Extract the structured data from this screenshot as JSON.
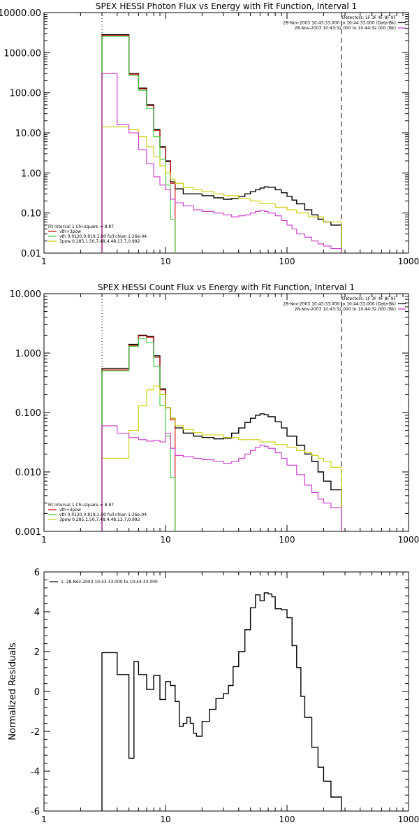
{
  "chart_data": [
    {
      "type": "line",
      "title": "SPEX HESSI Photon Flux vs Energy with Fit Function, Interval 1",
      "xlabel": "",
      "ylabel": "",
      "xscale": "log",
      "yscale": "log",
      "xlim": [
        1,
        1000
      ],
      "ylim": [
        0.01,
        10000
      ],
      "xticklabels": [
        "1",
        "10",
        "100",
        "1000"
      ],
      "yticklabels": [
        "0.01",
        "0.10",
        "1.00",
        "10.00",
        "100.00",
        "1000.00",
        "10000.00"
      ],
      "vlines": [
        {
          "x": 3,
          "style": "dotted"
        },
        {
          "x": 280,
          "style": "dashed"
        }
      ],
      "info_lines": [
        "Detectors: 1F 3F 4F 8F 9F",
        "28-Nov-2003 10:43:33.000 to 10:44:33.000 (Data-Bk)",
        "28-Nov-2003 10:43:32.000 to 10:44:32.000 (Bk)"
      ],
      "info_legend": [
        {
          "label": "28-Nov-2003 10:43:33.000 to 10:44:33.000 (Data-Bk)",
          "color": "#000000"
        },
        {
          "label": "28-Nov-2003 10:43:32.000 to 10:44:32.000 (Bk)",
          "color": "#cc33cc"
        }
      ],
      "fit_legend_header": "Fit Interval 1    Chi-square = 8.87",
      "fit_legend": [
        {
          "label": "vth+3pow",
          "color": "#cc0000"
        },
        {
          "label": "vth 0.0120,0.819,1.00  full chian 1.26e-04",
          "color": "#33cc33"
        },
        {
          "label": "3pow 0.285,1.50,7.48,4.48,13.7,0.992",
          "color": "#cccc00"
        }
      ],
      "series": [
        {
          "color": "#000000",
          "x": [
            3,
            4,
            5,
            6,
            7,
            8,
            9,
            10,
            11,
            12,
            14,
            17,
            20,
            25,
            30,
            35,
            40,
            45,
            50,
            55,
            60,
            65,
            70,
            80,
            90,
            100,
            110,
            120,
            140,
            160,
            180,
            200,
            230,
            280
          ],
          "y": [
            2800,
            2800,
            300,
            130,
            50,
            12,
            4.5,
            2,
            0.6,
            0.4,
            0.3,
            0.3,
            0.27,
            0.24,
            0.22,
            0.23,
            0.26,
            0.3,
            0.34,
            0.38,
            0.42,
            0.45,
            0.44,
            0.38,
            0.32,
            0.26,
            0.21,
            0.17,
            0.12,
            0.09,
            0.07,
            0.06,
            0.05,
            0.04
          ]
        },
        {
          "color": "#cc0000",
          "x": [
            3,
            4,
            5,
            6,
            7,
            8,
            9,
            10,
            11,
            12
          ],
          "y": [
            2700,
            2700,
            290,
            125,
            48,
            11.5,
            4.3,
            1.9,
            0.55,
            0.4
          ]
        },
        {
          "color": "#33cc33",
          "x": [
            3,
            4,
            5,
            6,
            7,
            8,
            9,
            10,
            11,
            12
          ],
          "y": [
            2550,
            2550,
            270,
            115,
            40,
            8,
            2.2,
            0.5,
            0.07,
            0.01
          ]
        },
        {
          "color": "#cccc00",
          "x": [
            3,
            4,
            5,
            6,
            7,
            8,
            9,
            10,
            11,
            12,
            14,
            17,
            20,
            25,
            30,
            40,
            50,
            60,
            80,
            100,
            120,
            150,
            200,
            280
          ],
          "y": [
            14,
            14,
            12,
            8,
            4.5,
            2.5,
            1.5,
            1,
            0.7,
            0.55,
            0.43,
            0.38,
            0.34,
            0.3,
            0.27,
            0.23,
            0.2,
            0.17,
            0.14,
            0.12,
            0.1,
            0.08,
            0.06,
            0.045
          ]
        },
        {
          "color": "#cc33cc",
          "x": [
            3,
            4,
            5,
            6,
            7,
            8,
            9,
            10,
            11,
            12,
            14,
            17,
            20,
            25,
            30,
            35,
            40,
            45,
            50,
            55,
            60,
            65,
            70,
            80,
            90,
            100,
            110,
            120,
            140,
            160,
            180,
            200,
            230,
            280
          ],
          "y": [
            300,
            16,
            10,
            3.8,
            1.7,
            0.8,
            0.5,
            0.38,
            0.22,
            0.18,
            0.15,
            0.12,
            0.11,
            0.1,
            0.09,
            0.08,
            0.085,
            0.09,
            0.1,
            0.11,
            0.115,
            0.11,
            0.1,
            0.085,
            0.065,
            0.05,
            0.04,
            0.03,
            0.025,
            0.02,
            0.017,
            0.015,
            0.013,
            0.012
          ]
        }
      ]
    },
    {
      "type": "line",
      "title": "SPEX HESSI Count Flux vs Energy with Fit Function, Interval 1",
      "xlabel": "",
      "ylabel": "",
      "xscale": "log",
      "yscale": "log",
      "xlim": [
        1,
        1000
      ],
      "ylim": [
        0.001,
        10
      ],
      "xticklabels": [
        "1",
        "10",
        "100",
        "1000"
      ],
      "yticklabels": [
        "0.001",
        "0.010",
        "0.100",
        "1.000",
        "10.000"
      ],
      "vlines": [
        {
          "x": 3,
          "style": "dotted"
        },
        {
          "x": 280,
          "style": "dashed"
        }
      ],
      "info_lines": [
        "Detectors: 1F 3F 4F 8F 9F",
        "28-Nov-2003 10:43:33.000 to 10:44:33.000 (Data-Bk)",
        "28-Nov-2003 10:43:32.000 to 10:44:32.000 (Bk)"
      ],
      "info_legend": [
        {
          "label": "28-Nov-2003 10:43:33.000 to 10:44:33.000 (Data-Bk)",
          "color": "#000000"
        },
        {
          "label": "28-Nov-2003 10:43:32.000 to 10:44:32.000 (Bk)",
          "color": "#cc33cc"
        }
      ],
      "fit_legend_header": "Fit Interval 1    Chi-square = 8.87",
      "fit_legend": [
        {
          "label": "vth+3pow",
          "color": "#cc0000"
        },
        {
          "label": "vth 0.0120,0.819,1.00  full chian 1.26e-04",
          "color": "#33cc33"
        },
        {
          "label": "3pow 0.285,1.50,7.48,4.48,13.7,0.992",
          "color": "#cccc00"
        }
      ],
      "series": [
        {
          "color": "#000000",
          "x": [
            3,
            4,
            5,
            6,
            7,
            8,
            9,
            10,
            11,
            12,
            14,
            17,
            20,
            25,
            30,
            35,
            40,
            45,
            50,
            55,
            60,
            65,
            70,
            80,
            90,
            100,
            120,
            140,
            160,
            180,
            200,
            230,
            280
          ],
          "y": [
            0.55,
            0.55,
            1.4,
            2,
            1.9,
            0.9,
            0.25,
            0.12,
            0.08,
            0.055,
            0.045,
            0.04,
            0.038,
            0.036,
            0.037,
            0.045,
            0.055,
            0.068,
            0.08,
            0.09,
            0.095,
            0.092,
            0.085,
            0.07,
            0.055,
            0.04,
            0.028,
            0.02,
            0.015,
            0.01,
            0.007,
            0.005,
            0.004
          ]
        },
        {
          "color": "#cc0000",
          "x": [
            3,
            4,
            5,
            6,
            7,
            8,
            9,
            10,
            11,
            12
          ],
          "y": [
            0.52,
            0.52,
            1.35,
            1.95,
            1.85,
            0.85,
            0.24,
            0.12,
            0.075,
            0.055
          ]
        },
        {
          "color": "#33cc33",
          "x": [
            3,
            4,
            5,
            6,
            7,
            8,
            9,
            10,
            11,
            12
          ],
          "y": [
            0.5,
            0.5,
            1.3,
            1.75,
            1.5,
            0.6,
            0.13,
            0.04,
            0.008,
            0.001
          ]
        },
        {
          "color": "#cccc00",
          "x": [
            3,
            4,
            5,
            6,
            7,
            8,
            9,
            10,
            11,
            12,
            14,
            17,
            20,
            30,
            40,
            60,
            80,
            100,
            120,
            140,
            160,
            180,
            200,
            230,
            280
          ],
          "y": [
            0.017,
            0.017,
            0.05,
            0.13,
            0.24,
            0.28,
            0.2,
            0.12,
            0.08,
            0.06,
            0.052,
            0.046,
            0.042,
            0.038,
            0.035,
            0.032,
            0.029,
            0.026,
            0.023,
            0.021,
            0.019,
            0.017,
            0.015,
            0.012,
            0.009
          ]
        },
        {
          "color": "#cc33cc",
          "x": [
            3,
            4,
            5,
            6,
            7,
            8,
            9,
            10,
            11,
            12,
            14,
            17,
            20,
            25,
            30,
            35,
            40,
            45,
            50,
            55,
            60,
            65,
            70,
            80,
            90,
            100,
            120,
            140,
            160,
            180,
            200,
            230,
            280
          ],
          "y": [
            0.06,
            0.045,
            0.038,
            0.035,
            0.033,
            0.034,
            0.032,
            0.045,
            0.025,
            0.019,
            0.018,
            0.017,
            0.016,
            0.015,
            0.014,
            0.015,
            0.017,
            0.02,
            0.023,
            0.026,
            0.028,
            0.027,
            0.025,
            0.021,
            0.017,
            0.013,
            0.009,
            0.006,
            0.0045,
            0.0035,
            0.003,
            0.0025,
            0.0022
          ]
        }
      ]
    },
    {
      "type": "line",
      "title": "",
      "xlabel": "",
      "ylabel": "Normalized Residuals",
      "xscale": "log",
      "yscale": "linear",
      "xlim": [
        1,
        1000
      ],
      "ylim": [
        -6,
        6
      ],
      "xticklabels": [
        "1",
        "10",
        "100",
        "1000"
      ],
      "yticklabels": [
        "-6",
        "-4",
        "-2",
        "0",
        "2",
        "4",
        "6"
      ],
      "legend": [
        {
          "label": "1. 28-Nov-2003 10:43:33.000 to 10:44:33.000",
          "color": "#000000"
        }
      ],
      "series": [
        {
          "color": "#000000",
          "x": [
            3,
            4,
            5,
            5.5,
            6,
            7,
            8,
            9,
            10,
            11,
            12,
            13,
            14,
            15,
            16,
            17,
            18,
            20,
            23,
            26,
            30,
            33,
            36,
            40,
            45,
            50,
            55,
            60,
            65,
            70,
            75,
            80,
            90,
            100,
            110,
            120,
            130,
            140,
            160,
            180,
            200,
            230,
            280
          ],
          "y": [
            1.95,
            0.85,
            -3.35,
            1.5,
            0.85,
            0.1,
            0.8,
            -0.4,
            0.5,
            0.3,
            -0.5,
            -1.75,
            -1.6,
            -1.3,
            -1.6,
            -2.1,
            -2.25,
            -1.5,
            -0.9,
            -0.35,
            -0.1,
            0.3,
            1.25,
            2.0,
            3.1,
            4.2,
            4.85,
            4.55,
            4.95,
            4.9,
            4.75,
            4.15,
            4.1,
            3.7,
            2.3,
            1.2,
            -0.25,
            -1.3,
            -2.8,
            -3.8,
            -4.5,
            -5.3,
            -6
          ]
        }
      ]
    }
  ]
}
